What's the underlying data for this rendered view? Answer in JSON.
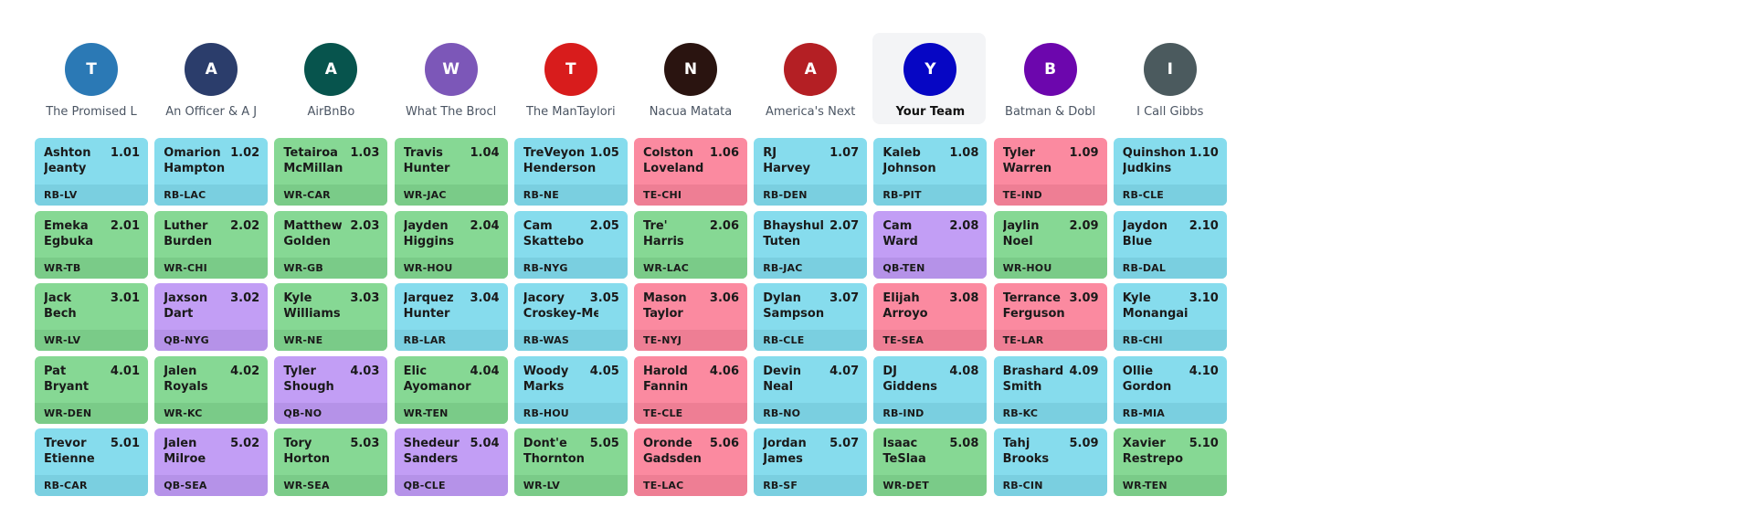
{
  "my_team_index": 7,
  "teams": [
    {
      "initial": "T",
      "name": "The Promised L",
      "color": "#2b79b5"
    },
    {
      "initial": "A",
      "name": "An Officer & A J",
      "color": "#2b3d6b"
    },
    {
      "initial": "A",
      "name": "AirBnBo",
      "color": "#07544d"
    },
    {
      "initial": "W",
      "name": "What The Brocl",
      "color": "#7c57b8"
    },
    {
      "initial": "T",
      "name": "The ManTaylori",
      "color": "#d81c1c"
    },
    {
      "initial": "N",
      "name": "Nacua Matata",
      "color": "#2a1410"
    },
    {
      "initial": "A",
      "name": "America's Next",
      "color": "#b41f24"
    },
    {
      "initial": "Y",
      "name": "Your Team",
      "color": "#0606c4"
    },
    {
      "initial": "B",
      "name": "Batman & Dobl",
      "color": "#6c06ad"
    },
    {
      "initial": "I",
      "name": "I Call Gibbs",
      "color": "#4b5a5e"
    }
  ],
  "position_colors": {
    "RB": "#86dced",
    "WR": "#86d894",
    "TE": "#fb8aa0",
    "QB": "#c29ef5"
  },
  "rounds": [
    [
      {
        "first": "Ashton",
        "last": "Jeanty",
        "pick": "1.01",
        "pos": "RB",
        "team": "LV"
      },
      {
        "first": "Omarion",
        "last": "Hampton",
        "pick": "1.02",
        "pos": "RB",
        "team": "LAC"
      },
      {
        "first": "Tetairoa",
        "last": "McMillan",
        "pick": "1.03",
        "pos": "WR",
        "team": "CAR"
      },
      {
        "first": "Travis",
        "last": "Hunter",
        "pick": "1.04",
        "pos": "WR",
        "team": "JAC"
      },
      {
        "first": "TreVeyon",
        "last": "Henderson",
        "pick": "1.05",
        "pos": "RB",
        "team": "NE"
      },
      {
        "first": "Colston",
        "last": "Loveland",
        "pick": "1.06",
        "pos": "TE",
        "team": "CHI"
      },
      {
        "first": "RJ",
        "last": "Harvey",
        "pick": "1.07",
        "pos": "RB",
        "team": "DEN"
      },
      {
        "first": "Kaleb",
        "last": "Johnson",
        "pick": "1.08",
        "pos": "RB",
        "team": "PIT"
      },
      {
        "first": "Tyler",
        "last": "Warren",
        "pick": "1.09",
        "pos": "TE",
        "team": "IND"
      },
      {
        "first": "Quinshon",
        "last": "Judkins",
        "pick": "1.10",
        "pos": "RB",
        "team": "CLE"
      }
    ],
    [
      {
        "first": "Emeka",
        "last": "Egbuka",
        "pick": "2.01",
        "pos": "WR",
        "team": "TB"
      },
      {
        "first": "Luther",
        "last": "Burden",
        "pick": "2.02",
        "pos": "WR",
        "team": "CHI"
      },
      {
        "first": "Matthew",
        "last": "Golden",
        "pick": "2.03",
        "pos": "WR",
        "team": "GB"
      },
      {
        "first": "Jayden",
        "last": "Higgins",
        "pick": "2.04",
        "pos": "WR",
        "team": "HOU"
      },
      {
        "first": "Cam",
        "last": "Skattebo",
        "pick": "2.05",
        "pos": "RB",
        "team": "NYG"
      },
      {
        "first": "Tre'",
        "last": "Harris",
        "pick": "2.06",
        "pos": "WR",
        "team": "LAC"
      },
      {
        "first": "Bhayshul",
        "last": "Tuten",
        "pick": "2.07",
        "pos": "RB",
        "team": "JAC"
      },
      {
        "first": "Cam",
        "last": "Ward",
        "pick": "2.08",
        "pos": "QB",
        "team": "TEN"
      },
      {
        "first": "Jaylin",
        "last": "Noel",
        "pick": "2.09",
        "pos": "WR",
        "team": "HOU"
      },
      {
        "first": "Jaydon",
        "last": "Blue",
        "pick": "2.10",
        "pos": "RB",
        "team": "DAL"
      }
    ],
    [
      {
        "first": "Jack",
        "last": "Bech",
        "pick": "3.01",
        "pos": "WR",
        "team": "LV"
      },
      {
        "first": "Jaxson",
        "last": "Dart",
        "pick": "3.02",
        "pos": "QB",
        "team": "NYG"
      },
      {
        "first": "Kyle",
        "last": "Williams",
        "pick": "3.03",
        "pos": "WR",
        "team": "NE"
      },
      {
        "first": "Jarquez",
        "last": "Hunter",
        "pick": "3.04",
        "pos": "RB",
        "team": "LAR"
      },
      {
        "first": "Jacory",
        "last": "Croskey-Merritt",
        "pick": "3.05",
        "pos": "RB",
        "team": "WAS"
      },
      {
        "first": "Mason",
        "last": "Taylor",
        "pick": "3.06",
        "pos": "TE",
        "team": "NYJ"
      },
      {
        "first": "Dylan",
        "last": "Sampson",
        "pick": "3.07",
        "pos": "RB",
        "team": "CLE"
      },
      {
        "first": "Elijah",
        "last": "Arroyo",
        "pick": "3.08",
        "pos": "TE",
        "team": "SEA"
      },
      {
        "first": "Terrance",
        "last": "Ferguson",
        "pick": "3.09",
        "pos": "TE",
        "team": "LAR"
      },
      {
        "first": "Kyle",
        "last": "Monangai",
        "pick": "3.10",
        "pos": "RB",
        "team": "CHI"
      }
    ],
    [
      {
        "first": "Pat",
        "last": "Bryant",
        "pick": "4.01",
        "pos": "WR",
        "team": "DEN"
      },
      {
        "first": "Jalen",
        "last": "Royals",
        "pick": "4.02",
        "pos": "WR",
        "team": "KC"
      },
      {
        "first": "Tyler",
        "last": "Shough",
        "pick": "4.03",
        "pos": "QB",
        "team": "NO"
      },
      {
        "first": "Elic",
        "last": "Ayomanor",
        "pick": "4.04",
        "pos": "WR",
        "team": "TEN"
      },
      {
        "first": "Woody",
        "last": "Marks",
        "pick": "4.05",
        "pos": "RB",
        "team": "HOU"
      },
      {
        "first": "Harold",
        "last": "Fannin",
        "pick": "4.06",
        "pos": "TE",
        "team": "CLE"
      },
      {
        "first": "Devin",
        "last": "Neal",
        "pick": "4.07",
        "pos": "RB",
        "team": "NO"
      },
      {
        "first": "DJ",
        "last": "Giddens",
        "pick": "4.08",
        "pos": "RB",
        "team": "IND"
      },
      {
        "first": "Brashard",
        "last": "Smith",
        "pick": "4.09",
        "pos": "RB",
        "team": "KC"
      },
      {
        "first": "Ollie",
        "last": "Gordon",
        "pick": "4.10",
        "pos": "RB",
        "team": "MIA"
      }
    ],
    [
      {
        "first": "Trevor",
        "last": "Etienne",
        "pick": "5.01",
        "pos": "RB",
        "team": "CAR"
      },
      {
        "first": "Jalen",
        "last": "Milroe",
        "pick": "5.02",
        "pos": "QB",
        "team": "SEA"
      },
      {
        "first": "Tory",
        "last": "Horton",
        "pick": "5.03",
        "pos": "WR",
        "team": "SEA"
      },
      {
        "first": "Shedeur",
        "last": "Sanders",
        "pick": "5.04",
        "pos": "QB",
        "team": "CLE"
      },
      {
        "first": "Dont'e",
        "last": "Thornton",
        "pick": "5.05",
        "pos": "WR",
        "team": "LV"
      },
      {
        "first": "Oronde",
        "last": "Gadsden",
        "pick": "5.06",
        "pos": "TE",
        "team": "LAC"
      },
      {
        "first": "Jordan",
        "last": "James",
        "pick": "5.07",
        "pos": "RB",
        "team": "SF"
      },
      {
        "first": "Isaac",
        "last": "TeSlaa",
        "pick": "5.08",
        "pos": "WR",
        "team": "DET"
      },
      {
        "first": "Tahj",
        "last": "Brooks",
        "pick": "5.09",
        "pos": "RB",
        "team": "CIN"
      },
      {
        "first": "Xavier",
        "last": "Restrepo",
        "pick": "5.10",
        "pos": "WR",
        "team": "TEN"
      }
    ]
  ]
}
